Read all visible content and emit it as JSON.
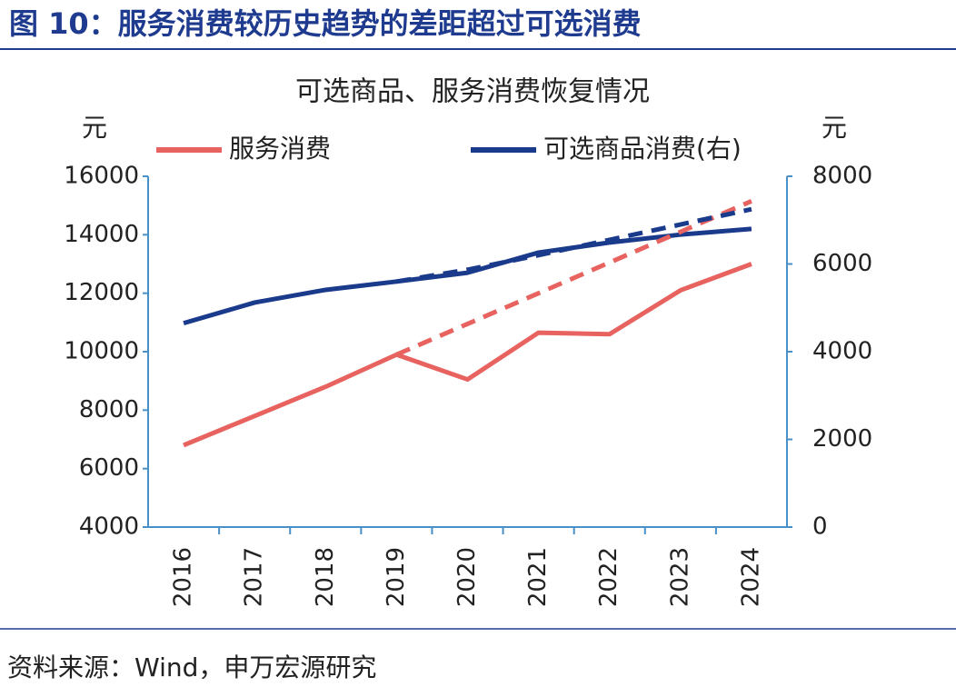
{
  "header": {
    "title": "图 10：服务消费较历史趋势的差距超过可选消费"
  },
  "source": "资料来源：Wind，申万宏源研究",
  "chart_data": {
    "type": "line",
    "title": "可选商品、服务消费恢复情况",
    "y_label": "元",
    "y2_label": "元",
    "categories": [
      "2016",
      "2017",
      "2018",
      "2019",
      "2020",
      "2021",
      "2022",
      "2023",
      "2024"
    ],
    "ylim": [
      4000,
      16000
    ],
    "yticks": [
      4000,
      6000,
      8000,
      10000,
      12000,
      14000,
      16000
    ],
    "y2lim": [
      0,
      8000
    ],
    "y2ticks": [
      0,
      2000,
      4000,
      6000,
      8000
    ],
    "series": [
      {
        "name": "服务消费",
        "color": "#e8635f",
        "values": [
          6800,
          7800,
          8800,
          9900,
          9050,
          10650,
          10600,
          12100,
          13000
        ]
      },
      {
        "name": "可选商品消费(右)",
        "color": "#1a3a8c",
        "axis": "y2",
        "values": [
          4650,
          5120,
          5410,
          5600,
          5800,
          6260,
          6490,
          6670,
          6800
        ]
      },
      {
        "color": "#e8635f",
        "dashed": true,
        "values": [
          null,
          null,
          null,
          9900,
          10950,
          12000,
          13050,
          14100,
          15150
        ]
      },
      {
        "color": "#1a3a8c",
        "dashed": true,
        "axis": "y2",
        "values": [
          null,
          null,
          null,
          5600,
          5870,
          6200,
          6550,
          6900,
          7250
        ]
      }
    ]
  }
}
